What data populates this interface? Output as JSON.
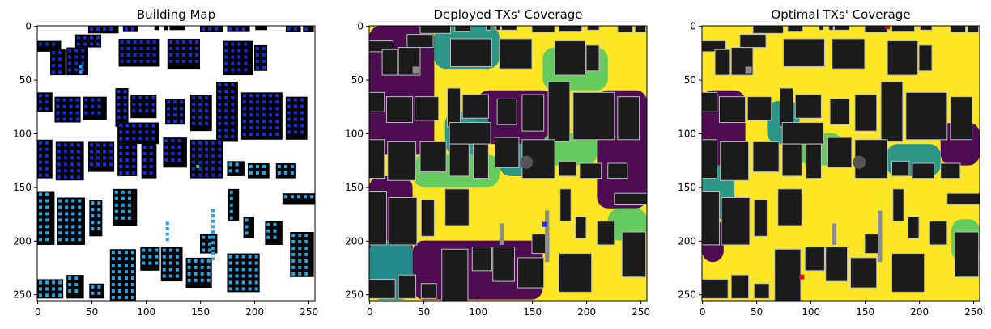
{
  "chart_data": [
    {
      "type": "heatmap",
      "title": "Building Map",
      "xlim": [
        0,
        255
      ],
      "ylim": [
        255,
        0
      ],
      "x_ticks": [
        0,
        50,
        100,
        150,
        200,
        250
      ],
      "y_ticks": [
        0,
        50,
        100,
        150,
        200,
        250
      ],
      "colors": {
        "building": "#000000",
        "free": "#ffffff",
        "rooftop_tx_candidate": "#0f2fe0",
        "ground_tx_candidate": "#1fa8ea",
        "selected": "#2ee05a"
      }
    },
    {
      "type": "heatmap",
      "title": "Deployed TXs' Coverage",
      "xlim": [
        0,
        255
      ],
      "ylim": [
        255,
        0
      ],
      "x_ticks": [
        0,
        50,
        100,
        150,
        200,
        250
      ],
      "y_ticks": [
        0,
        50,
        100,
        150,
        200,
        250
      ],
      "colormap": [
        "#440154",
        "#21918c",
        "#5ec962",
        "#fde725"
      ],
      "tx_marker_color": "#1030ff"
    },
    {
      "type": "heatmap",
      "title": "Optimal TXs' Coverage",
      "xlim": [
        0,
        255
      ],
      "ylim": [
        255,
        0
      ],
      "x_ticks": [
        0,
        50,
        100,
        150,
        200,
        250
      ],
      "y_ticks": [
        0,
        50,
        100,
        150,
        200,
        250
      ],
      "colormap": [
        "#440154",
        "#21918c",
        "#5ec962",
        "#fde725"
      ],
      "tx_marker_color": "#e01010"
    }
  ]
}
